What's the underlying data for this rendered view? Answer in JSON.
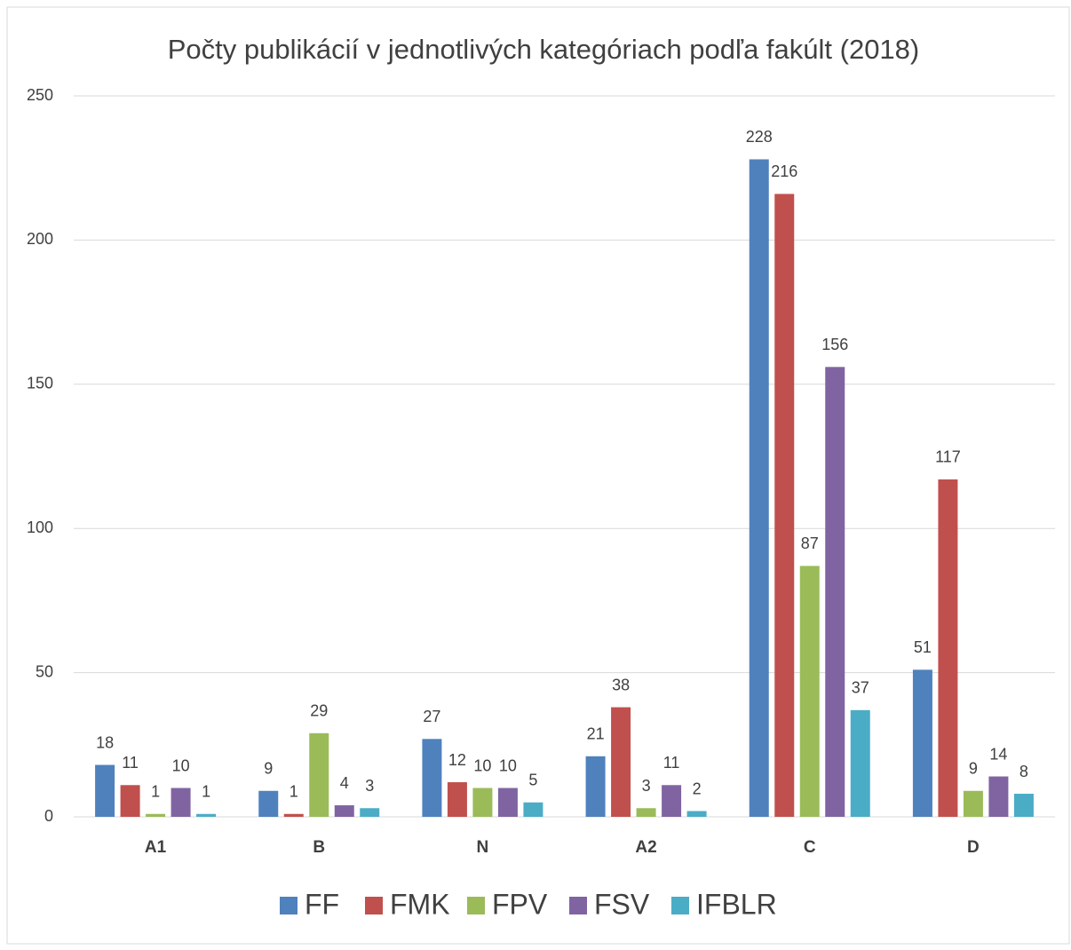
{
  "chart_data": {
    "type": "bar",
    "title": "Počty publikácií v jednotlivých kategóriach podľa fakúlt (2018)",
    "categories": [
      "A1",
      "B",
      "N",
      "A2",
      "C",
      "D"
    ],
    "series": [
      {
        "name": "FF",
        "color": "#4f81bd",
        "values": [
          18,
          9,
          27,
          21,
          228,
          51
        ]
      },
      {
        "name": "FMK",
        "color": "#c0504d",
        "values": [
          11,
          1,
          12,
          38,
          216,
          117
        ]
      },
      {
        "name": "FPV",
        "color": "#9bbb59",
        "values": [
          1,
          29,
          10,
          3,
          87,
          9
        ]
      },
      {
        "name": "FSV",
        "color": "#8064a2",
        "values": [
          10,
          4,
          10,
          11,
          156,
          14
        ]
      },
      {
        "name": "IFBLR",
        "color": "#4bacc6",
        "values": [
          1,
          3,
          5,
          2,
          37,
          8
        ]
      }
    ],
    "ylim": [
      0,
      250
    ],
    "yticks": [
      0,
      50,
      100,
      150,
      200,
      250
    ],
    "grid": true,
    "legend": "bottom"
  }
}
